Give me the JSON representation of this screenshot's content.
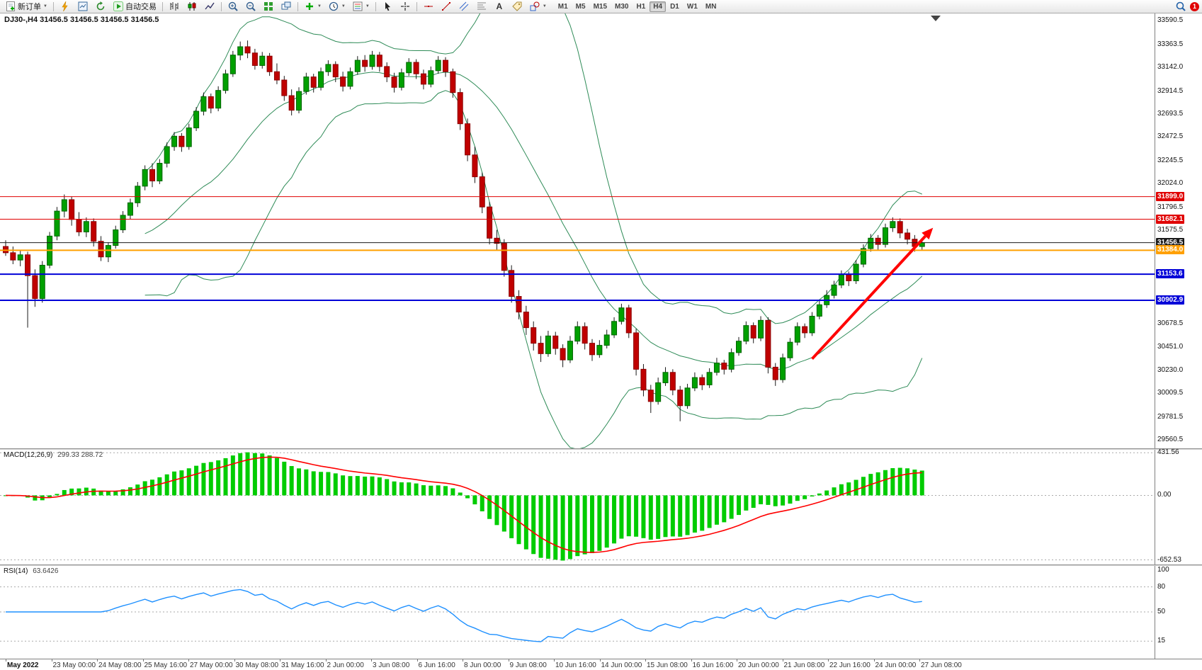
{
  "toolbar": {
    "new_order_label": "新订单",
    "auto_trading_label": "自动交易",
    "text_tool_label": "A",
    "timeframes": [
      "M1",
      "M5",
      "M15",
      "M30",
      "H1",
      "H4",
      "D1",
      "W1",
      "MN"
    ],
    "active_timeframe": "H4",
    "notification_count": "1",
    "icons": [
      "new-order-icon",
      "lightning-icon",
      "market-watch-icon",
      "refresh-icon",
      "play-icon",
      "bar-chart-icon",
      "candlestick-chart-icon",
      "line-chart-icon",
      "zoom-in-icon",
      "zoom-out-icon",
      "tile-windows-icon",
      "cascade-windows-icon",
      "indicators-plus-icon",
      "periods-clock-icon",
      "template-palette-icon",
      "cursor-icon",
      "crosshair-icon",
      "horizontal-line-icon",
      "trendline-icon",
      "equidistant-channel-icon",
      "fibonacci-icon",
      "text-icon",
      "label-icon",
      "shapes-icon",
      "search-icon",
      "notification-badge"
    ]
  },
  "chart": {
    "symbol_label": "DJ30-,H4",
    "ohlc_label": "31456.5 31456.5 31456.5 31456.5",
    "price_axis": [
      "33590.5",
      "33363.5",
      "33142.0",
      "32914.5",
      "32693.5",
      "32472.5",
      "32245.5",
      "32024.0",
      "31796.5",
      "31575.5",
      "30678.5",
      "30451.0",
      "30230.0",
      "30009.5",
      "29781.5",
      "29560.5"
    ]
  },
  "macd": {
    "title": "MACD(12,26,9)",
    "values": "299.33 288.72",
    "axis": [
      {
        "v": 431.56,
        "label": "431.56"
      },
      {
        "v": 0,
        "label": "0.00"
      },
      {
        "v": -652.53,
        "label": "-652.53"
      }
    ]
  },
  "rsi": {
    "title": "RSI(14)",
    "value": "63.6426",
    "period": 14,
    "axis": [
      {
        "v": 100,
        "label": "100"
      },
      {
        "v": 80,
        "label": "80"
      },
      {
        "v": 50,
        "label": "50"
      },
      {
        "v": 15,
        "label": "15"
      }
    ],
    "levels": [
      80,
      50,
      15
    ]
  },
  "colors": {
    "bull": "#00A000",
    "bull_border": "#006400",
    "bear": "#C00000",
    "bear_border": "#8B0000",
    "wick": "#1a1a1a",
    "bollinger": "#2E8B57",
    "macd_histogram": "#00CC00",
    "macd_signal": "#FF0000",
    "rsi_line": "#1E90FF",
    "grid_dash": "#aaaaaa"
  },
  "chart_data": {
    "type": "candlestick",
    "symbol": "DJ30-",
    "timeframe": "H4",
    "y_range": [
      29480,
      33660
    ],
    "x_labels": [
      "May 2022",
      "23 May 00:00",
      "24 May 08:00",
      "25 May 16:00",
      "27 May 00:00",
      "30 May 08:00",
      "31 May 16:00",
      "2 Jun 00:00",
      "3 Jun 08:00",
      "6 Jun 16:00",
      "8 Jun 00:00",
      "9 Jun 08:00",
      "10 Jun 16:00",
      "14 Jun 00:00",
      "15 Jun 08:00",
      "16 Jun 16:00",
      "20 Jun 00:00",
      "21 Jun 08:00",
      "22 Jun 16:00",
      "24 Jun 00:00",
      "27 Jun 08:00"
    ],
    "ohlc": [
      [
        31420,
        31480,
        31330,
        31360
      ],
      [
        31360,
        31420,
        31250,
        31290
      ],
      [
        31290,
        31380,
        31230,
        31340
      ],
      [
        31340,
        31370,
        30640,
        31140
      ],
      [
        31140,
        31200,
        30840,
        30920
      ],
      [
        30920,
        31280,
        30880,
        31240
      ],
      [
        31240,
        31560,
        31210,
        31520
      ],
      [
        31520,
        31800,
        31480,
        31760
      ],
      [
        31760,
        31920,
        31700,
        31870
      ],
      [
        31870,
        31900,
        31620,
        31680
      ],
      [
        31680,
        31750,
        31520,
        31560
      ],
      [
        31560,
        31700,
        31510,
        31660
      ],
      [
        31660,
        31690,
        31420,
        31470
      ],
      [
        31470,
        31520,
        31280,
        31320
      ],
      [
        31320,
        31460,
        31270,
        31430
      ],
      [
        31430,
        31620,
        31400,
        31580
      ],
      [
        31580,
        31760,
        31550,
        31720
      ],
      [
        31720,
        31880,
        31680,
        31840
      ],
      [
        31840,
        32040,
        31800,
        32000
      ],
      [
        32000,
        32200,
        31960,
        32160
      ],
      [
        32160,
        32220,
        31990,
        32050
      ],
      [
        32050,
        32260,
        32020,
        32220
      ],
      [
        32220,
        32420,
        32180,
        32380
      ],
      [
        32380,
        32520,
        32340,
        32480
      ],
      [
        32480,
        32510,
        32330,
        32380
      ],
      [
        32380,
        32600,
        32350,
        32560
      ],
      [
        32560,
        32760,
        32530,
        32720
      ],
      [
        32720,
        32900,
        32680,
        32860
      ],
      [
        32860,
        32890,
        32700,
        32750
      ],
      [
        32750,
        32960,
        32720,
        32920
      ],
      [
        32920,
        33120,
        32890,
        33080
      ],
      [
        33080,
        33300,
        33050,
        33260
      ],
      [
        33260,
        33390,
        33210,
        33340
      ],
      [
        33340,
        33400,
        33230,
        33280
      ],
      [
        33280,
        33320,
        33120,
        33160
      ],
      [
        33160,
        33290,
        33130,
        33250
      ],
      [
        33250,
        33280,
        33060,
        33100
      ],
      [
        33100,
        33180,
        32980,
        33020
      ],
      [
        33020,
        33060,
        32820,
        32870
      ],
      [
        32870,
        32930,
        32680,
        32730
      ],
      [
        32730,
        32950,
        32700,
        32910
      ],
      [
        32910,
        33090,
        32880,
        33050
      ],
      [
        33050,
        33080,
        32900,
        32950
      ],
      [
        32950,
        33140,
        32920,
        33100
      ],
      [
        33100,
        33210,
        33060,
        33170
      ],
      [
        33170,
        33200,
        33000,
        33050
      ],
      [
        33050,
        33100,
        32910,
        32960
      ],
      [
        32960,
        33140,
        32930,
        33100
      ],
      [
        33100,
        33250,
        33070,
        33210
      ],
      [
        33210,
        33260,
        33100,
        33150
      ],
      [
        33150,
        33300,
        33120,
        33260
      ],
      [
        33260,
        33290,
        33100,
        33150
      ],
      [
        33150,
        33190,
        33000,
        33050
      ],
      [
        33050,
        33090,
        32900,
        32950
      ],
      [
        32950,
        33130,
        32920,
        33090
      ],
      [
        33090,
        33230,
        33060,
        33190
      ],
      [
        33190,
        33220,
        33030,
        33080
      ],
      [
        33080,
        33120,
        32930,
        32980
      ],
      [
        32980,
        33150,
        32950,
        33110
      ],
      [
        33110,
        33250,
        33080,
        33210
      ],
      [
        33210,
        33240,
        33050,
        33100
      ],
      [
        33100,
        33130,
        32850,
        32900
      ],
      [
        32900,
        32940,
        32540,
        32600
      ],
      [
        32600,
        32650,
        32240,
        32300
      ],
      [
        32300,
        32380,
        32030,
        32090
      ],
      [
        32090,
        32130,
        31740,
        31800
      ],
      [
        31800,
        31850,
        31440,
        31500
      ],
      [
        31500,
        31580,
        31380,
        31450
      ],
      [
        31450,
        31490,
        31130,
        31190
      ],
      [
        31190,
        31240,
        30880,
        30940
      ],
      [
        30940,
        31000,
        30720,
        30790
      ],
      [
        30790,
        30850,
        30570,
        30640
      ],
      [
        30640,
        30700,
        30420,
        30490
      ],
      [
        30490,
        30560,
        30310,
        30390
      ],
      [
        30390,
        30610,
        30360,
        30560
      ],
      [
        30560,
        30600,
        30380,
        30440
      ],
      [
        30440,
        30480,
        30260,
        30330
      ],
      [
        30330,
        30560,
        30300,
        30510
      ],
      [
        30510,
        30700,
        30480,
        30650
      ],
      [
        30650,
        30690,
        30430,
        30490
      ],
      [
        30490,
        30530,
        30320,
        30380
      ],
      [
        30380,
        30520,
        30350,
        30470
      ],
      [
        30470,
        30620,
        30440,
        30570
      ],
      [
        30570,
        30740,
        30540,
        30700
      ],
      [
        30700,
        30870,
        30670,
        30830
      ],
      [
        30830,
        30860,
        30540,
        30590
      ],
      [
        30590,
        30630,
        30180,
        30240
      ],
      [
        30240,
        30290,
        29980,
        30040
      ],
      [
        30040,
        30090,
        29820,
        29930
      ],
      [
        29930,
        30160,
        29900,
        30110
      ],
      [
        30110,
        30260,
        30080,
        30210
      ],
      [
        30210,
        30240,
        29990,
        30040
      ],
      [
        30040,
        30080,
        29740,
        29890
      ],
      [
        29890,
        30100,
        29860,
        30060
      ],
      [
        30060,
        30210,
        30030,
        30160
      ],
      [
        30160,
        30190,
        30040,
        30090
      ],
      [
        30090,
        30250,
        30060,
        30210
      ],
      [
        30210,
        30350,
        30180,
        30300
      ],
      [
        30300,
        30330,
        30190,
        30240
      ],
      [
        30240,
        30440,
        30210,
        30400
      ],
      [
        30400,
        30550,
        30370,
        30510
      ],
      [
        30510,
        30700,
        30480,
        30660
      ],
      [
        30660,
        30690,
        30490,
        30540
      ],
      [
        30540,
        30750,
        30510,
        30710
      ],
      [
        30710,
        30740,
        30200,
        30260
      ],
      [
        30260,
        30300,
        30080,
        30140
      ],
      [
        30140,
        30390,
        30110,
        30350
      ],
      [
        30350,
        30540,
        30320,
        30500
      ],
      [
        30500,
        30690,
        30470,
        30650
      ],
      [
        30650,
        30680,
        30540,
        30590
      ],
      [
        30590,
        30790,
        30560,
        30750
      ],
      [
        30750,
        30900,
        30720,
        30860
      ],
      [
        30860,
        31000,
        30830,
        30950
      ],
      [
        30950,
        31090,
        30920,
        31050
      ],
      [
        31050,
        31190,
        31020,
        31150
      ],
      [
        31150,
        31180,
        31040,
        31090
      ],
      [
        31090,
        31290,
        31060,
        31250
      ],
      [
        31250,
        31440,
        31220,
        31400
      ],
      [
        31400,
        31540,
        31370,
        31500
      ],
      [
        31500,
        31530,
        31390,
        31440
      ],
      [
        31440,
        31640,
        31410,
        31600
      ],
      [
        31600,
        31700,
        31560,
        31660
      ],
      [
        31660,
        31690,
        31500,
        31550
      ],
      [
        31550,
        31590,
        31440,
        31490
      ],
      [
        31490,
        31530,
        31370,
        31420
      ],
      [
        31420,
        31500,
        31390,
        31456.5
      ]
    ],
    "overlays": {
      "bollinger": {
        "period": 20,
        "deviation": 2,
        "color": "#2E8B57"
      },
      "horizontal_lines": [
        {
          "value": 31899.0,
          "label": "31899.0",
          "color": "#E00000",
          "thickness": 1
        },
        {
          "value": 31682.1,
          "label": "31682.1",
          "color": "#E00000",
          "thickness": 1
        },
        {
          "value": 31456.5,
          "label": "31456.5",
          "color": "#1A1A1A",
          "thickness": 1
        },
        {
          "value": 31384.0,
          "label": "31384.0",
          "color": "#FFA000",
          "thickness": 2
        },
        {
          "value": 31153.6,
          "label": "31153.6",
          "color": "#0000D8",
          "thickness": 2
        },
        {
          "value": 30902.9,
          "label": "30902.9",
          "color": "#0000D8",
          "thickness": 2
        }
      ],
      "trend_arrow": {
        "from_bar": 110,
        "from_price": 30340,
        "to_bar": 126.5,
        "to_price": 31600,
        "color": "#FF0000",
        "width": 4
      }
    },
    "indicators": [
      {
        "name": "MACD",
        "params": [
          12,
          26,
          9
        ],
        "current_values": [
          299.33,
          288.72
        ],
        "y_axis": [
          431.56,
          0,
          -652.53
        ]
      },
      {
        "name": "RSI",
        "params": [
          14
        ],
        "current_value": 63.6426,
        "levels": [
          80,
          50,
          15
        ]
      }
    ]
  }
}
